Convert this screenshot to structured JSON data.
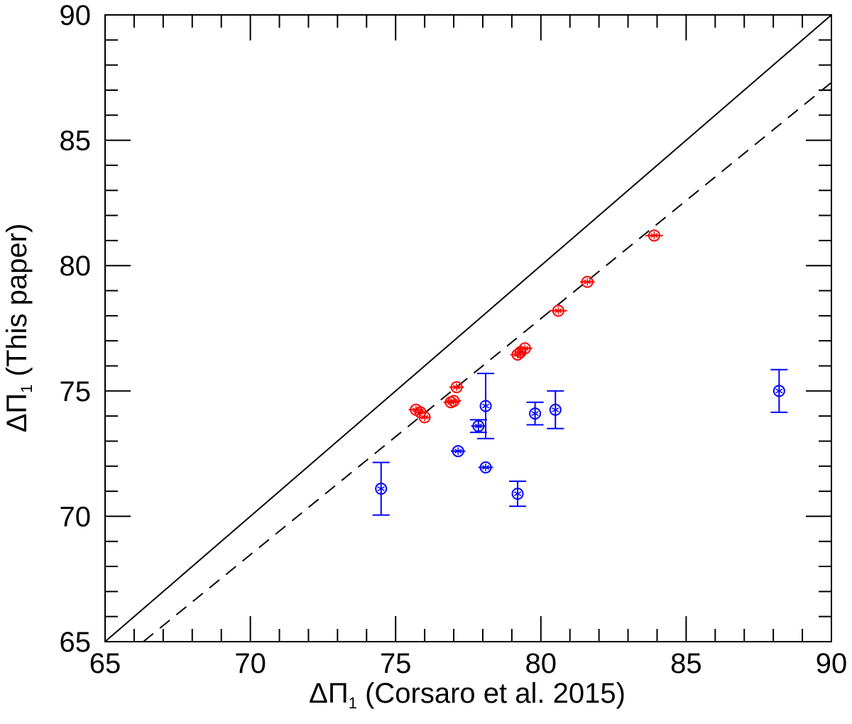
{
  "chart_data": {
    "type": "scatter",
    "xlabel": {
      "symbol": "ΔΠ",
      "sub": "1",
      "text": " (Corsaro et al. 2015)"
    },
    "ylabel": {
      "symbol": "ΔΠ",
      "sub": "1",
      "text": " (This paper)"
    },
    "xlim": [
      65,
      90
    ],
    "ylim": [
      65,
      90
    ],
    "xticks": [
      "65",
      "70",
      "75",
      "80",
      "85",
      "90"
    ],
    "yticks": [
      "65",
      "70",
      "75",
      "80",
      "85",
      "90"
    ],
    "minor_tick_step": 1,
    "grid": false,
    "lines": [
      {
        "style": "solid",
        "slope": 1.0,
        "intercept": 0.0,
        "color": "#000000"
      },
      {
        "style": "dashed",
        "slope": 0.9417,
        "intercept": 2.55,
        "color": "#000000"
      }
    ],
    "series": [
      {
        "color": "#ff0000",
        "marker": "circled-asterisk",
        "points": [
          {
            "x": 75.7,
            "y": 74.25,
            "xerr": 0.25,
            "yerr": 0.0
          },
          {
            "x": 75.85,
            "y": 74.15,
            "xerr": 0.2,
            "yerr": 0.0
          },
          {
            "x": 76.0,
            "y": 73.95,
            "xerr": 0.2,
            "yerr": 0.0
          },
          {
            "x": 76.9,
            "y": 74.55,
            "xerr": 0.25,
            "yerr": 0.0
          },
          {
            "x": 77.0,
            "y": 74.6,
            "xerr": 0.25,
            "yerr": 0.0
          },
          {
            "x": 77.1,
            "y": 75.15,
            "xerr": 0.25,
            "yerr": 0.0
          },
          {
            "x": 79.2,
            "y": 76.45,
            "xerr": 0.25,
            "yerr": 0.0
          },
          {
            "x": 79.3,
            "y": 76.55,
            "xerr": 0.2,
            "yerr": 0.0
          },
          {
            "x": 79.45,
            "y": 76.7,
            "xerr": 0.25,
            "yerr": 0.0
          },
          {
            "x": 80.6,
            "y": 78.2,
            "xerr": 0.3,
            "yerr": 0.0
          },
          {
            "x": 81.6,
            "y": 79.35,
            "xerr": 0.25,
            "yerr": 0.0
          },
          {
            "x": 83.9,
            "y": 81.2,
            "xerr": 0.3,
            "yerr": 0.0
          }
        ]
      },
      {
        "color": "#0000ff",
        "marker": "circled-asterisk",
        "points": [
          {
            "x": 74.5,
            "y": 71.1,
            "xerr": 0.0,
            "yerr": 1.05
          },
          {
            "x": 77.15,
            "y": 72.6,
            "xerr": 0.25,
            "yerr": 0.0
          },
          {
            "x": 77.85,
            "y": 73.6,
            "xerr": 0.25,
            "yerr": 0.25
          },
          {
            "x": 78.1,
            "y": 74.4,
            "xerr": 0.0,
            "yerr": 1.3
          },
          {
            "x": 78.1,
            "y": 71.95,
            "xerr": 0.25,
            "yerr": 0.0
          },
          {
            "x": 79.2,
            "y": 70.9,
            "xerr": 0.0,
            "yerr": 0.5
          },
          {
            "x": 79.8,
            "y": 74.1,
            "xerr": 0.0,
            "yerr": 0.45
          },
          {
            "x": 80.5,
            "y": 74.25,
            "xerr": 0.0,
            "yerr": 0.75
          },
          {
            "x": 88.2,
            "y": 75.0,
            "xerr": 0.0,
            "yerr": 0.85
          }
        ]
      }
    ]
  }
}
